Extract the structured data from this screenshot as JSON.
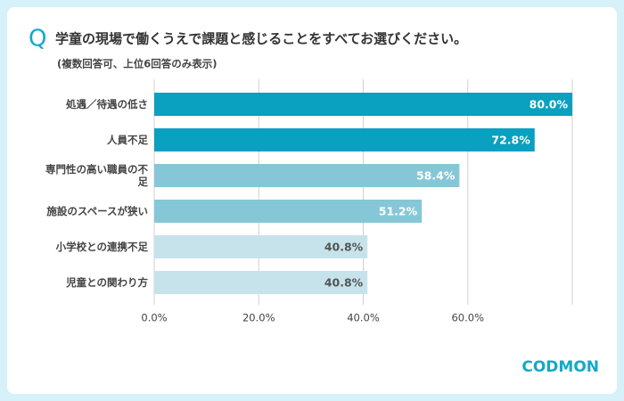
{
  "chart_data": {
    "type": "bar",
    "orientation": "horizontal",
    "title_marker": "Q",
    "title": "学童の現場で働くうえで課題と感じることをすべてお選びください。",
    "subtitle": "(複数回答可、上位6回答のみ表示)",
    "categories": [
      "処遇／待遇の低さ",
      "人員不足",
      "専門性の高い職員の不足",
      "施設のスペースが狭い",
      "小学校との連携不足",
      "児童との関わり方"
    ],
    "values": [
      80.0,
      72.8,
      58.4,
      51.2,
      40.8,
      40.8
    ],
    "value_labels": [
      "80.0%",
      "72.8%",
      "58.4%",
      "51.2%",
      "40.8%",
      "40.8%"
    ],
    "colors": [
      "#0aa0c0",
      "#0aa0c0",
      "#86c7d7",
      "#86c7d7",
      "#c6e3eb",
      "#c6e3eb"
    ],
    "label_colors": [
      "#ffffff",
      "#ffffff",
      "#ffffff",
      "#ffffff",
      "#555555",
      "#555555"
    ],
    "xlim": [
      0,
      80
    ],
    "xticks": [
      {
        "value": 0,
        "label": "0.0%"
      },
      {
        "value": 20,
        "label": "20.0%"
      },
      {
        "value": 40,
        "label": "40.0%"
      },
      {
        "value": 60,
        "label": "60.0%"
      }
    ],
    "grid": true,
    "logo": "CODMON"
  }
}
